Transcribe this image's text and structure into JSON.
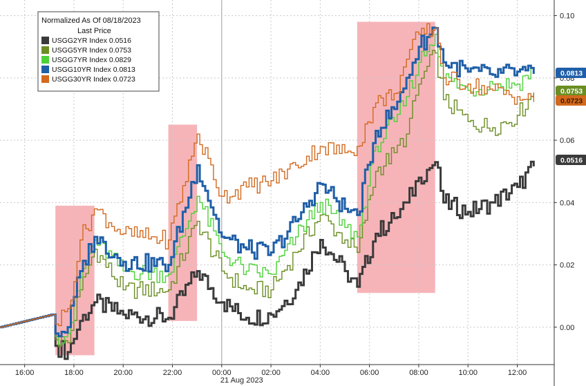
{
  "chart_data": {
    "type": "line",
    "legend": {
      "title_line1": "Normalized As Of 08/18/2023",
      "title_line2": "Last Price",
      "placement": "top-left"
    },
    "x_ticks": [
      "16:00",
      "18:00",
      "20:00",
      "22:00",
      "00:00",
      "02:00",
      "04:00",
      "06:00",
      "08:00",
      "10:00",
      "12:00"
    ],
    "x_date_label": "21 Aug 2023",
    "y_ticks": [
      "0.00",
      "0.02",
      "0.04",
      "0.06",
      "0.08",
      "0.10"
    ],
    "ylim": [
      -0.012,
      0.105
    ],
    "grid": true,
    "highlight_ranges": [
      {
        "start": "17:15",
        "end": "18:50"
      },
      {
        "start": "21:50",
        "end": "23:00"
      },
      {
        "start": "05:30",
        "end": "08:40"
      }
    ],
    "x": [
      "15:00",
      "17:05",
      "17:15",
      "17:45",
      "18:15",
      "18:50",
      "20:00",
      "21:50",
      "23:00",
      "00:00",
      "01:00",
      "02:00",
      "03:00",
      "04:00",
      "05:00",
      "05:30",
      "06:15",
      "07:00",
      "07:30",
      "08:00",
      "08:40",
      "09:00",
      "10:00",
      "11:00",
      "12:00",
      "12:40"
    ],
    "series": [
      {
        "name": "USGG2YR Index",
        "last_price": "0.0516",
        "color": "#3a3a3a",
        "values": [
          0.0,
          0.004,
          -0.006,
          -0.008,
          0.002,
          0.008,
          0.004,
          0.003,
          0.018,
          0.008,
          0.003,
          0.004,
          0.012,
          0.028,
          0.018,
          0.013,
          0.03,
          0.035,
          0.04,
          0.048,
          0.053,
          0.04,
          0.037,
          0.04,
          0.045,
          0.0516
        ]
      },
      {
        "name": "USGG5YR Index",
        "last_price": "0.0753",
        "color": "#6b8e23",
        "values": [
          0.0,
          0.004,
          -0.004,
          -0.005,
          0.012,
          0.025,
          0.012,
          0.012,
          0.034,
          0.018,
          0.012,
          0.012,
          0.024,
          0.036,
          0.028,
          0.024,
          0.05,
          0.056,
          0.062,
          0.078,
          0.088,
          0.073,
          0.066,
          0.064,
          0.068,
          0.0753
        ]
      },
      {
        "name": "USGG7YR Index",
        "last_price": "0.0829",
        "color": "#4cd137",
        "values": [
          0.0,
          0.004,
          -0.003,
          -0.002,
          0.016,
          0.028,
          0.018,
          0.017,
          0.042,
          0.024,
          0.018,
          0.017,
          0.029,
          0.04,
          0.032,
          0.029,
          0.058,
          0.066,
          0.074,
          0.085,
          0.094,
          0.08,
          0.076,
          0.078,
          0.078,
          0.0829
        ]
      },
      {
        "name": "USGG10YR Index",
        "last_price": "0.0813",
        "color": "#1f5fa8",
        "values": [
          0.0,
          0.004,
          -0.002,
          0.0,
          0.018,
          0.029,
          0.021,
          0.02,
          0.052,
          0.029,
          0.025,
          0.024,
          0.034,
          0.046,
          0.038,
          0.036,
          0.063,
          0.07,
          0.08,
          0.09,
          0.096,
          0.085,
          0.082,
          0.081,
          0.082,
          0.0813
        ]
      },
      {
        "name": "USGG30YR Index",
        "last_price": "0.0723",
        "color": "#d2691e",
        "values": [
          0.0,
          0.004,
          0.001,
          0.006,
          0.028,
          0.038,
          0.03,
          0.028,
          0.062,
          0.042,
          0.045,
          0.047,
          0.052,
          0.058,
          0.056,
          0.058,
          0.072,
          0.075,
          0.086,
          0.094,
          0.096,
          0.08,
          0.078,
          0.076,
          0.074,
          0.0723
        ]
      }
    ],
    "value_tags": [
      {
        "text": "0.0813",
        "bg": "#1f5fa8",
        "fg": "#ffffff",
        "value": 0.0813
      },
      {
        "text": "0.0753",
        "bg": "#6b8e23",
        "fg": "#ffffff",
        "value": 0.0753
      },
      {
        "text": "0.0723",
        "bg": "#d2691e",
        "fg": "#3a1a00",
        "value": 0.0723
      },
      {
        "text": "0.0516",
        "bg": "#3a3a3a",
        "fg": "#ffffff",
        "value": 0.0516
      }
    ]
  }
}
